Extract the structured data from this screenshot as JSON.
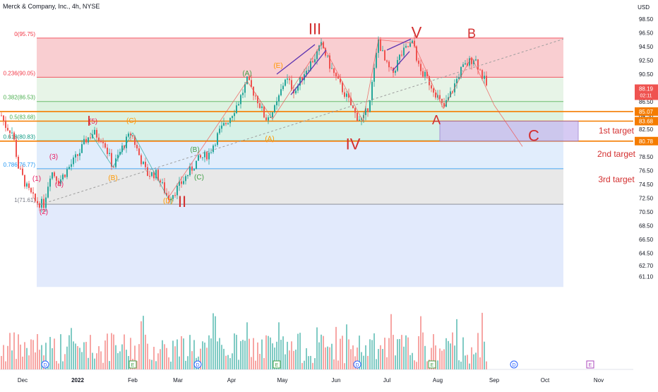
{
  "header": {
    "title": "Merck & Company, Inc., 4h, NYSE",
    "currency": "USD"
  },
  "chart_data": {
    "type": "candlestick",
    "y_ticks": [
      "98.50",
      "96.50",
      "94.50",
      "92.50",
      "90.50",
      "88.50",
      "86.50",
      "84.50",
      "82.50",
      "80.50",
      "78.50",
      "76.50",
      "74.50",
      "72.50",
      "70.50",
      "68.50",
      "66.50",
      "64.50",
      "62.70",
      "61.10"
    ],
    "x_ticks": [
      "Dec",
      "2022",
      "Feb",
      "Mar",
      "Apr",
      "May",
      "Jun",
      "Jul",
      "Aug",
      "Sep",
      "Oct",
      "Nov"
    ],
    "fib_levels": [
      {
        "ratio": "0",
        "price": "95.75",
        "label": "0(95.75)",
        "color": "#f23645"
      },
      {
        "ratio": "0.236",
        "price": "90.05",
        "label": "0.236(90.05)",
        "color": "#f23645"
      },
      {
        "ratio": "0.382",
        "price": "86.53",
        "label": "0.382(86.53)",
        "color": "#4caf50"
      },
      {
        "ratio": "0.5",
        "price": "83.68",
        "label": "0.5(83.68)",
        "color": "#4caf50"
      },
      {
        "ratio": "0.618",
        "price": "80.83",
        "label": "0.618(80.83)",
        "color": "#089981"
      },
      {
        "ratio": "0.786",
        "price": "76.77",
        "label": "0.786(76.77)",
        "color": "#2196f3"
      },
      {
        "ratio": "1",
        "price": "71.61",
        "label": "1(71.61)",
        "color": "#787b86"
      }
    ],
    "targets": [
      {
        "label": "1st target",
        "price": "85.07"
      },
      {
        "label": "2nd target",
        "price": "83.68"
      },
      {
        "label": "3rd target",
        "price": "80.78"
      }
    ],
    "last_price": "88.19",
    "countdown": "02:11",
    "wave_labels": [
      {
        "text": "I",
        "color": "#d32f2f"
      },
      {
        "text": "II",
        "color": "#d32f2f"
      },
      {
        "text": "III",
        "color": "#d32f2f"
      },
      {
        "text": "IV",
        "color": "#d32f2f"
      },
      {
        "text": "V",
        "color": "#d32f2f"
      },
      {
        "text": "A",
        "color": "#d32f2f"
      },
      {
        "text": "B",
        "color": "#d32f2f"
      },
      {
        "text": "C",
        "color": "#d32f2f"
      },
      {
        "text": "(1)",
        "color": "#e91e63"
      },
      {
        "text": "(2)",
        "color": "#e91e63"
      },
      {
        "text": "(3)",
        "color": "#e91e63"
      },
      {
        "text": "(4)",
        "color": "#e91e63"
      },
      {
        "text": "(5)",
        "color": "#e91e63"
      },
      {
        "text": "(A)",
        "color": "#43a047"
      },
      {
        "text": "(B)",
        "color": "#43a047"
      },
      {
        "text": "(C)",
        "color": "#43a047"
      },
      {
        "text": "(A)",
        "color": "#ff9800"
      },
      {
        "text": "(B)",
        "color": "#ff9800"
      },
      {
        "text": "(C)",
        "color": "#ff9800"
      },
      {
        "text": "(D)",
        "color": "#ff9800"
      },
      {
        "text": "(E)",
        "color": "#ff9800"
      }
    ],
    "event_markers": [
      "D",
      "E",
      "D",
      "E",
      "D",
      "E",
      "D",
      "E",
      "D",
      "E"
    ],
    "colors": {
      "up": "#26a69a",
      "down": "#ef5350",
      "volume_up": "#80cbc4",
      "volume_down": "#f7a6a4",
      "target_line": "#f57c00",
      "last_price_bg": "#ef5350"
    }
  }
}
